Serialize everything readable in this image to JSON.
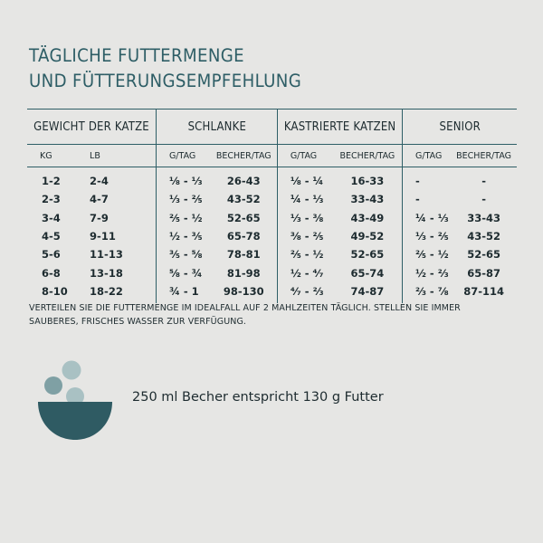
{
  "title": {
    "line1": "TÄGLICHE FUTTERMENGE",
    "line2": "UND FÜTTERUNGSEMPFEHLUNG"
  },
  "table": {
    "groups": {
      "weight": "GEWICHT DER KATZE",
      "slim": "SCHLANKE",
      "neutered": "KASTRIERTE KATZEN",
      "senior": "SENIOR"
    },
    "sub": {
      "kg": "KG",
      "lb": "LB",
      "slim_g": "G/TAG",
      "slim_cup": "BECHER/TAG",
      "neut_g": "G/TAG",
      "neut_cup": "BECHER/TAG",
      "sen_g": "G/TAG",
      "sen_cup": "BECHER/TAG"
    },
    "rows": [
      {
        "kg": "1-2",
        "lb": "2-4",
        "slim_g": "⅛ - ⅓",
        "slim_cup": "26-43",
        "neut_g": "⅛ - ¼",
        "neut_cup": "16-33",
        "sen_g": "-",
        "sen_cup": "-"
      },
      {
        "kg": "2-3",
        "lb": "4-7",
        "slim_g": "⅓ - ⅖",
        "slim_cup": "43-52",
        "neut_g": "¼ - ⅓",
        "neut_cup": "33-43",
        "sen_g": "-",
        "sen_cup": "-"
      },
      {
        "kg": "3-4",
        "lb": "7-9",
        "slim_g": "⅖ - ½",
        "slim_cup": "52-65",
        "neut_g": "⅓ - ⅜",
        "neut_cup": "43-49",
        "sen_g": "¼ - ⅓",
        "sen_cup": "33-43"
      },
      {
        "kg": "4-5",
        "lb": "9-11",
        "slim_g": "½ - ⅗",
        "slim_cup": "65-78",
        "neut_g": "⅜ - ⅖",
        "neut_cup": "49-52",
        "sen_g": "⅓ - ⅖",
        "sen_cup": "43-52"
      },
      {
        "kg": "5-6",
        "lb": "11-13",
        "slim_g": "⅗ - ⅝",
        "slim_cup": "78-81",
        "neut_g": "⅖ - ½",
        "neut_cup": "52-65",
        "sen_g": "⅖ - ½",
        "sen_cup": "52-65"
      },
      {
        "kg": "6-8",
        "lb": "13-18",
        "slim_g": "⅝ - ¾",
        "slim_cup": "81-98",
        "neut_g": "½ - ⁴⁄₇",
        "neut_cup": "65-74",
        "sen_g": "½ - ⅔",
        "sen_cup": "65-87"
      },
      {
        "kg": "8-10",
        "lb": "18-22",
        "slim_g": "¾ - 1",
        "slim_cup": "98-130",
        "neut_g": "⁴⁄₇ - ⅔",
        "neut_cup": "74-87",
        "sen_g": "⅔ - ⅞",
        "sen_cup": "87-114"
      }
    ]
  },
  "note": "VERTEILEN SIE DIE FUTTERMENGE IM IDEALFALL AUF 2 MAHLZEITEN TÄGLICH. STELLEN SIE IMMER SAUBERES, FRISCHES WASSER ZUR VERFÜGUNG.",
  "cup_info": "250 ml Becher entspricht 130 g Futter",
  "colors": {
    "accent": "#2e5e66",
    "bowl": "#2f5b63",
    "kibble_light": "#a9c1c3",
    "kibble_mid": "#7fa0a4",
    "background": "#e6e6e4",
    "text": "#1d2b2f"
  },
  "icons": {
    "bowl": "food-bowl-icon"
  }
}
